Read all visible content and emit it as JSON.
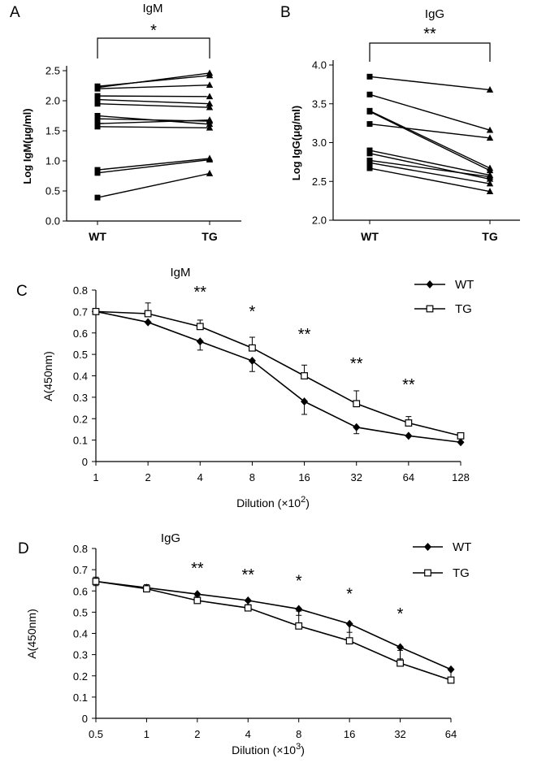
{
  "chart_data": [
    {
      "panel": "A",
      "type": "line",
      "subtype": "paired",
      "title": "IgM",
      "ylabel": "Log IgM(μg/ml)",
      "xlabel": "",
      "categories": [
        "WT",
        "TG"
      ],
      "ylim": [
        0,
        2.5
      ],
      "yticks": [
        "0.0",
        "0.5",
        "1.0",
        "1.5",
        "2.0",
        "2.5"
      ],
      "yticks_values": [
        0,
        0.5,
        1.0,
        1.5,
        2.0,
        2.5
      ],
      "markers": {
        "WT": "square",
        "TG": "triangle"
      },
      "significance": "*",
      "pairs": [
        [
          0.39,
          0.79
        ],
        [
          0.8,
          1.02
        ],
        [
          0.85,
          1.04
        ],
        [
          1.57,
          1.55
        ],
        [
          1.62,
          1.68
        ],
        [
          1.7,
          1.66
        ],
        [
          1.75,
          1.61
        ],
        [
          1.95,
          1.89
        ],
        [
          2.02,
          1.95
        ],
        [
          2.08,
          2.07
        ],
        [
          2.2,
          2.26
        ],
        [
          2.22,
          2.46
        ],
        [
          2.24,
          2.42
        ]
      ]
    },
    {
      "panel": "B",
      "type": "line",
      "subtype": "paired",
      "title": "IgG",
      "ylabel": "Log IgG(μg/ml)",
      "xlabel": "",
      "categories": [
        "WT",
        "TG"
      ],
      "ylim": [
        2.0,
        4.0
      ],
      "yticks": [
        "2.0",
        "2.5",
        "3.0",
        "3.5",
        "4.0"
      ],
      "yticks_values": [
        2.0,
        2.5,
        3.0,
        3.5,
        4.0
      ],
      "markers": {
        "WT": "square",
        "TG": "triangle"
      },
      "significance": "**",
      "pairs": [
        [
          3.85,
          3.68
        ],
        [
          3.62,
          3.16
        ],
        [
          3.41,
          2.67
        ],
        [
          3.4,
          2.64
        ],
        [
          3.24,
          3.06
        ],
        [
          2.9,
          2.58
        ],
        [
          2.86,
          2.53
        ],
        [
          2.77,
          2.56
        ],
        [
          2.74,
          2.47
        ],
        [
          2.67,
          2.37
        ]
      ]
    },
    {
      "panel": "C",
      "type": "line",
      "title": "IgM",
      "ylabel": "A(450nm)",
      "xlabel_prefix": "Dilution (×10",
      "xlabel_exp": "2",
      "xlabel_suffix": ")",
      "categories": [
        "1",
        "2",
        "4",
        "8",
        "16",
        "32",
        "64",
        "128"
      ],
      "ylim": [
        0,
        0.8
      ],
      "yticks": [
        "0",
        "0.1",
        "0.2",
        "0.3",
        "0.4",
        "0.5",
        "0.6",
        "0.7",
        "0.8"
      ],
      "yticks_values": [
        0,
        0.1,
        0.2,
        0.3,
        0.4,
        0.5,
        0.6,
        0.7,
        0.8
      ],
      "legend_position": "top-right",
      "series": [
        {
          "name": "WT",
          "marker": "diamond",
          "values": [
            0.7,
            0.65,
            0.56,
            0.47,
            0.28,
            0.16,
            0.12,
            0.09
          ],
          "error": [
            0,
            0,
            0.04,
            0.05,
            0.06,
            0.03,
            0,
            0
          ]
        },
        {
          "name": "TG",
          "marker": "open-square",
          "values": [
            0.7,
            0.69,
            0.63,
            0.53,
            0.4,
            0.27,
            0.18,
            0.12
          ],
          "error": [
            0,
            0.05,
            0.03,
            0.05,
            0.05,
            0.06,
            0.03,
            0
          ]
        }
      ],
      "annotations": [
        {
          "category": "4",
          "text": "**"
        },
        {
          "category": "8",
          "text": "*"
        },
        {
          "category": "16",
          "text": "**"
        },
        {
          "category": "32",
          "text": "**"
        },
        {
          "category": "64",
          "text": "**"
        }
      ]
    },
    {
      "panel": "D",
      "type": "line",
      "title": "IgG",
      "ylabel": "A(450nm)",
      "xlabel_prefix": "Dilution (×10",
      "xlabel_exp": "3",
      "xlabel_suffix": ")",
      "categories": [
        "0.5",
        "1",
        "2",
        "4",
        "8",
        "16",
        "32",
        "64"
      ],
      "ylim": [
        0,
        0.8
      ],
      "yticks": [
        "0",
        "0.1",
        "0.2",
        "0.3",
        "0.4",
        "0.5",
        "0.6",
        "0.7",
        "0.8"
      ],
      "yticks_values": [
        0,
        0.1,
        0.2,
        0.3,
        0.4,
        0.5,
        0.6,
        0.7,
        0.8
      ],
      "legend_position": "top-right",
      "series": [
        {
          "name": "WT",
          "marker": "diamond",
          "values": [
            0.645,
            0.615,
            0.585,
            0.555,
            0.515,
            0.445,
            0.335,
            0.23
          ],
          "error": [
            0.02,
            0.02,
            0.02,
            0.02,
            0.03,
            0.04,
            0.055,
            0.05
          ]
        },
        {
          "name": "TG",
          "marker": "open-square",
          "values": [
            0.645,
            0.61,
            0.555,
            0.52,
            0.435,
            0.365,
            0.26,
            0.18
          ],
          "error": [
            0.02,
            0.02,
            0.02,
            0.03,
            0.07,
            0.08,
            0.06,
            0.05
          ]
        }
      ],
      "annotations": [
        {
          "category": "2",
          "text": "**"
        },
        {
          "category": "4",
          "text": "**"
        },
        {
          "category": "8",
          "text": "*"
        },
        {
          "category": "16",
          "text": "*"
        },
        {
          "category": "32",
          "text": "*"
        }
      ]
    }
  ]
}
